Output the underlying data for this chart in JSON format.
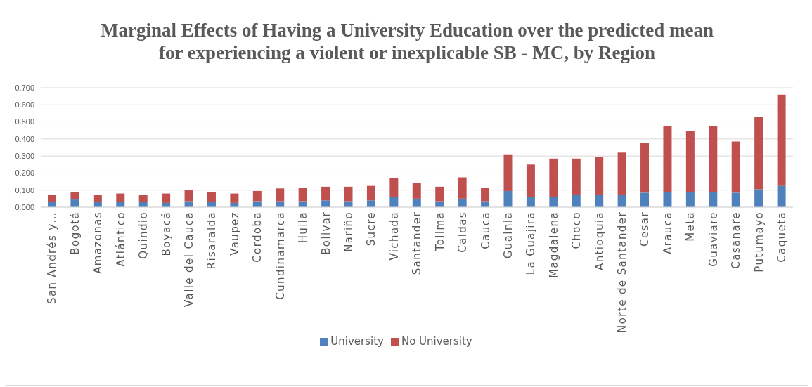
{
  "chart_data": {
    "type": "bar",
    "title": "Marginal Effects of Having a University Education over the predicted mean\nfor experiencing a violent or inexplicable SB - MC, by Region",
    "categories": [
      "San Andrés y…",
      "Bogotá",
      "Amazonas",
      "Atlántico",
      "Quindio",
      "Boyacá",
      "Valle del Cauca",
      "Risaralda",
      "Vaupez",
      "Cordoba",
      "Cundinamarca",
      "Huila",
      "Bolivar",
      "Nariño",
      "Sucre",
      "Vichada",
      "Santander",
      "Tolima",
      "Caldas",
      "Cauca",
      "Guainia",
      "La Guajira",
      "Magdalena",
      "Choco",
      "Antioquia",
      "Norte de Santander",
      "Cesar",
      "Arauca",
      "Meta",
      "Guaviare",
      "Casanare",
      "Putumayo",
      "Caqueta"
    ],
    "series": [
      {
        "name": "University",
        "color": "#4f81bd",
        "values": [
          0.03,
          0.045,
          0.03,
          0.03,
          0.03,
          0.025,
          0.035,
          0.03,
          0.025,
          0.035,
          0.035,
          0.035,
          0.04,
          0.035,
          0.04,
          0.06,
          0.05,
          0.035,
          0.05,
          0.035,
          0.095,
          0.06,
          0.06,
          0.07,
          0.07,
          0.07,
          0.085,
          0.09,
          0.09,
          0.09,
          0.085,
          0.105,
          0.125
        ]
      },
      {
        "name": "No University",
        "color": "#c0504d",
        "values": [
          0.04,
          0.045,
          0.04,
          0.05,
          0.04,
          0.055,
          0.065,
          0.06,
          0.055,
          0.06,
          0.075,
          0.08,
          0.08,
          0.085,
          0.085,
          0.11,
          0.09,
          0.085,
          0.125,
          0.08,
          0.215,
          0.19,
          0.225,
          0.215,
          0.225,
          0.25,
          0.29,
          0.385,
          0.355,
          0.385,
          0.3,
          0.425,
          0.535
        ]
      }
    ],
    "stacked": true,
    "ylim": [
      0,
      0.7
    ],
    "yticks": [
      {
        "value": 0,
        "label": "0.000"
      },
      {
        "value": 0.1,
        "label": "0.100"
      },
      {
        "value": 0.2,
        "label": "0.200"
      },
      {
        "value": 0.3,
        "label": "0.300"
      },
      {
        "value": 0.4,
        "label": "0.400"
      },
      {
        "value": 0.5,
        "label": "0.500"
      },
      {
        "value": 0.6,
        "label": "0.600"
      },
      {
        "value": 0.7,
        "label": "0.700"
      }
    ],
    "grid": "y",
    "legend": "bottom"
  }
}
